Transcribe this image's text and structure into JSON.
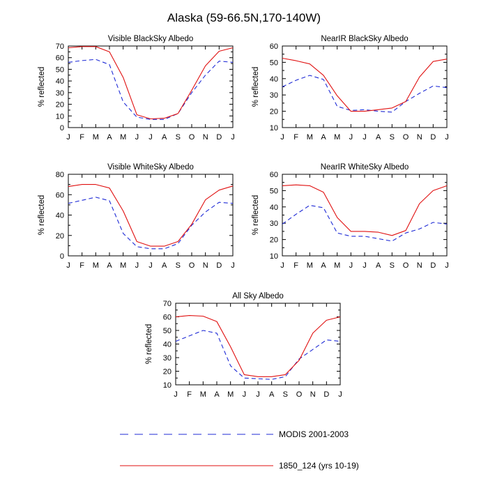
{
  "title": "Alaska (59-66.5N,170-140W)",
  "months": [
    "J",
    "F",
    "M",
    "A",
    "M",
    "J",
    "J",
    "A",
    "S",
    "O",
    "N",
    "D",
    "J"
  ],
  "colors": {
    "modis": "#1f2bd6",
    "model": "#e01010"
  },
  "legend": [
    {
      "key": "modis",
      "label": "MODIS 2001-2003",
      "style": "dashed"
    },
    {
      "key": "model",
      "label": "1850_124 (yrs 10-19)",
      "style": "solid"
    }
  ],
  "chart_data": [
    {
      "type": "line",
      "title": "Visible BlackSky Albedo",
      "xlabel": "",
      "ylabel": "% reflected",
      "ylim": [
        0,
        70
      ],
      "yticks": [
        0,
        10,
        20,
        30,
        40,
        50,
        60,
        70
      ],
      "series": [
        {
          "name": "MODIS 2001-2003",
          "values": [
            56,
            57.5,
            58.5,
            54,
            22,
            9,
            7,
            7,
            12,
            30,
            45,
            57,
            56
          ]
        },
        {
          "name": "1850_124 (yrs 10-19)",
          "values": [
            68.5,
            69.5,
            69.5,
            65,
            43,
            11,
            7.5,
            8,
            12,
            32,
            53,
            65.5,
            68.5
          ]
        }
      ]
    },
    {
      "type": "line",
      "title": "NearIR BlackSky Albedo",
      "xlabel": "",
      "ylabel": "% reflected",
      "ylim": [
        10,
        60
      ],
      "yticks": [
        10,
        20,
        30,
        40,
        50,
        60
      ],
      "series": [
        {
          "name": "MODIS 2001-2003",
          "values": [
            35,
            39,
            42,
            39.5,
            23,
            20.5,
            21,
            20,
            19.5,
            26,
            31,
            35.5,
            34.5
          ]
        },
        {
          "name": "1850_124 (yrs 10-19)",
          "values": [
            52.5,
            51,
            49,
            42,
            29.5,
            20,
            20,
            21,
            22,
            26,
            41,
            50.5,
            52
          ]
        }
      ]
    },
    {
      "type": "line",
      "title": "Visible WhiteSky Albedo",
      "xlabel": "",
      "ylabel": "% reflected",
      "ylim": [
        0,
        80
      ],
      "yticks": [
        0,
        20,
        40,
        60,
        80
      ],
      "series": [
        {
          "name": "MODIS 2001-2003",
          "values": [
            51.5,
            54.5,
            57.5,
            54,
            22,
            9,
            7,
            7,
            12,
            30,
            43,
            52.5,
            51.5
          ]
        },
        {
          "name": "1850_124 (yrs 10-19)",
          "values": [
            68,
            70,
            70,
            66.5,
            44,
            14,
            9.5,
            9.5,
            14,
            31,
            55,
            64.5,
            68.5
          ]
        }
      ]
    },
    {
      "type": "line",
      "title": "NearIR WhiteSky Albedo",
      "xlabel": "",
      "ylabel": "% reflected",
      "ylim": [
        10,
        60
      ],
      "yticks": [
        10,
        20,
        30,
        40,
        50,
        60
      ],
      "series": [
        {
          "name": "MODIS 2001-2003",
          "values": [
            29.5,
            35.5,
            41,
            39.5,
            24,
            22,
            22,
            20.5,
            19,
            24,
            26.5,
            30.5,
            29.5
          ]
        },
        {
          "name": "1850_124 (yrs 10-19)",
          "values": [
            53,
            53.5,
            53,
            49,
            33.5,
            25,
            25,
            24.5,
            22.5,
            25.5,
            42,
            50,
            53
          ]
        }
      ]
    },
    {
      "type": "line",
      "title": "All Sky Albedo",
      "xlabel": "",
      "ylabel": "% reflected",
      "ylim": [
        10,
        70
      ],
      "yticks": [
        10,
        20,
        30,
        40,
        50,
        60,
        70
      ],
      "series": [
        {
          "name": "MODIS 2001-2003",
          "values": [
            42,
            46,
            50,
            48,
            24,
            15,
            14.5,
            14,
            16,
            29,
            36,
            43,
            42
          ]
        },
        {
          "name": "1850_124 (yrs 10-19)",
          "values": [
            60,
            61,
            60.5,
            56.5,
            38,
            17.5,
            16,
            16,
            17.5,
            28,
            48,
            57.5,
            60
          ]
        }
      ]
    }
  ]
}
